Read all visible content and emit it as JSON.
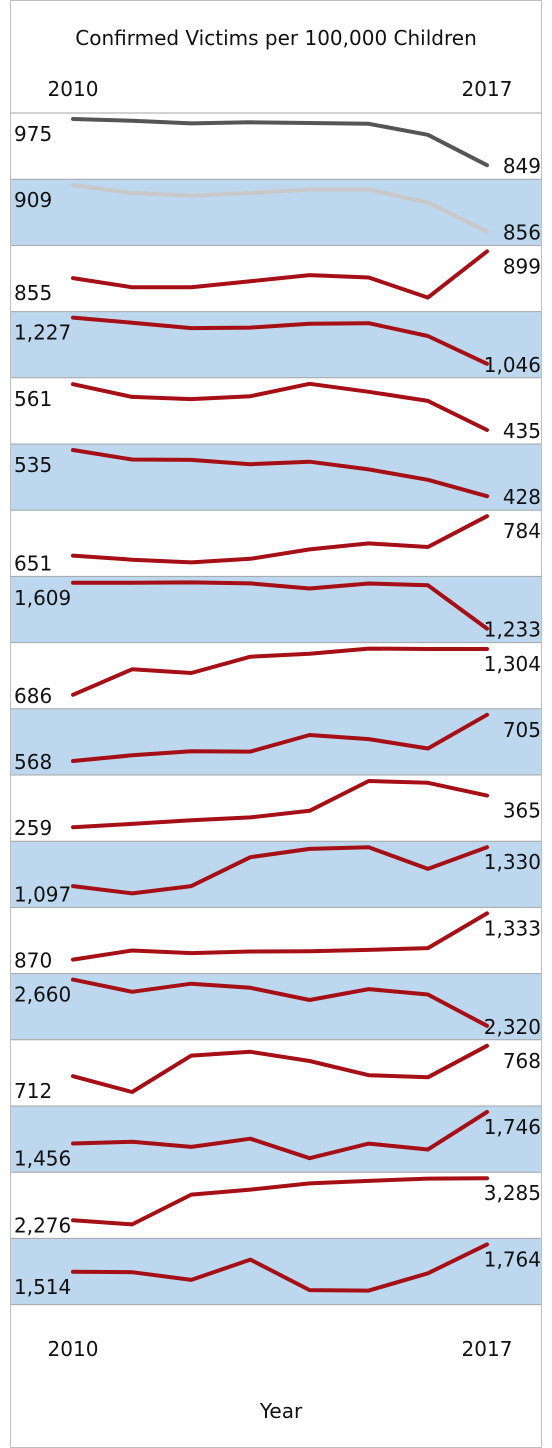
{
  "chart_data": {
    "type": "line",
    "title": "Confirmed Victims per 100,000 Children",
    "xlabel": "Year",
    "ylabel": "",
    "x": [
      2010,
      2011,
      2012,
      2013,
      2014,
      2015,
      2016,
      2017
    ],
    "x_start_label": "2010",
    "x_end_label": "2017",
    "grid": false,
    "layout": "small multiples, one row per series, alternating row shading",
    "colors": {
      "row_shade": "#bdd7ee",
      "row_border": "#a6a6a6",
      "frame": "#bfbfbf",
      "line_highlight": "#a50f15",
      "line_dark": "#555555",
      "line_light": "#c8c8c8"
    },
    "series": [
      {
        "values": [
          975,
          970,
          963,
          966,
          964,
          962,
          932,
          849
        ],
        "start_label": "975",
        "end_label": "849",
        "color": "#555555",
        "shaded": false
      },
      {
        "values": [
          909,
          900,
          897,
          900,
          904,
          904,
          889,
          856
        ],
        "start_label": "909",
        "end_label": "856",
        "color": "#c8c8c8",
        "shaded": true
      },
      {
        "values": [
          855,
          840,
          840,
          850,
          860,
          856,
          823,
          899
        ],
        "start_label": "855",
        "end_label": "899",
        "color": "#a50f15",
        "shaded": false
      },
      {
        "values": [
          1227,
          1207,
          1186,
          1188,
          1203,
          1205,
          1155,
          1046
        ],
        "start_label": "1,227",
        "end_label": "1,046",
        "color": "#a50f15",
        "shaded": true
      },
      {
        "values": [
          561,
          526,
          520,
          528,
          562,
          540,
          515,
          435
        ],
        "start_label": "561",
        "end_label": "435",
        "color": "#a50f15",
        "shaded": false
      },
      {
        "values": [
          535,
          513,
          512,
          502,
          508,
          490,
          466,
          428
        ],
        "start_label": "535",
        "end_label": "428",
        "color": "#a50f15",
        "shaded": true
      },
      {
        "values": [
          651,
          637,
          628,
          640,
          672,
          692,
          680,
          784
        ],
        "start_label": "651",
        "end_label": "784",
        "color": "#a50f15",
        "shaded": false
      },
      {
        "values": [
          1609,
          1609,
          1612,
          1604,
          1562,
          1603,
          1588,
          1233
        ],
        "start_label": "1,609",
        "end_label": "1,233",
        "color": "#a50f15",
        "shaded": true
      },
      {
        "values": [
          686,
          1030,
          980,
          1200,
          1240,
          1310,
          1305,
          1304
        ],
        "start_label": "686",
        "end_label": "1,304",
        "color": "#a50f15",
        "shaded": false
      },
      {
        "values": [
          568,
          585,
          597,
          596,
          645,
          633,
          605,
          705
        ],
        "start_label": "568",
        "end_label": "705",
        "color": "#a50f15",
        "shaded": true
      },
      {
        "values": [
          259,
          270,
          282,
          292,
          314,
          414,
          408,
          365
        ],
        "start_label": "259",
        "end_label": "365",
        "color": "#a50f15",
        "shaded": false
      },
      {
        "values": [
          1097,
          1053,
          1097,
          1270,
          1320,
          1330,
          1200,
          1330
        ],
        "start_label": "1,097",
        "end_label": "1,330",
        "color": "#a50f15",
        "shaded": true
      },
      {
        "values": [
          870,
          961,
          935,
          951,
          953,
          967,
          985,
          1333
        ],
        "start_label": "870",
        "end_label": "1,333",
        "color": "#a50f15",
        "shaded": false
      },
      {
        "values": [
          2660,
          2570,
          2630,
          2600,
          2510,
          2590,
          2550,
          2320
        ],
        "start_label": "2,660",
        "end_label": "2,320",
        "color": "#a50f15",
        "shaded": true
      },
      {
        "values": [
          712,
          683,
          750,
          757,
          740,
          714,
          710,
          768
        ],
        "start_label": "712",
        "end_label": "768",
        "color": "#a50f15",
        "shaded": false
      },
      {
        "values": [
          1456,
          1471,
          1424,
          1500,
          1320,
          1455,
          1400,
          1746
        ],
        "start_label": "1,456",
        "end_label": "1,746",
        "color": "#a50f15",
        "shaded": true
      },
      {
        "values": [
          2276,
          2175,
          2890,
          3010,
          3160,
          3220,
          3275,
          3285
        ],
        "start_label": "2,276",
        "end_label": "3,285",
        "color": "#a50f15",
        "shaded": false
      },
      {
        "values": [
          1514,
          1510,
          1440,
          1625,
          1347,
          1342,
          1500,
          1764
        ],
        "start_label": "1,514",
        "end_label": "1,764",
        "color": "#a50f15",
        "shaded": true
      }
    ]
  }
}
